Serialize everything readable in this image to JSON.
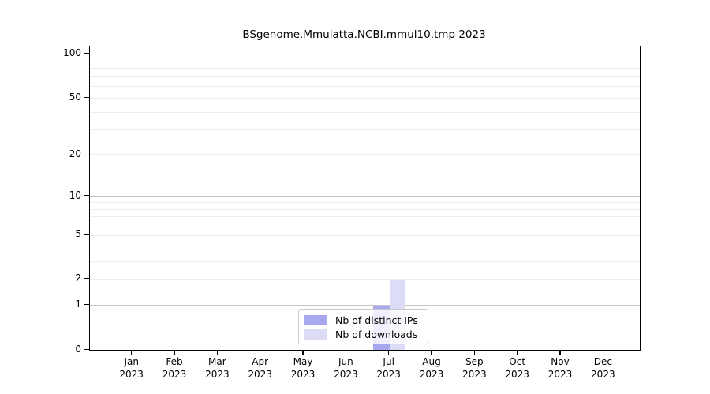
{
  "chart_data": {
    "type": "bar",
    "title": "BSgenome.Mmulatta.NCBI.mmul10.tmp 2023",
    "categories": [
      {
        "month": "Jan",
        "year": "2023"
      },
      {
        "month": "Feb",
        "year": "2023"
      },
      {
        "month": "Mar",
        "year": "2023"
      },
      {
        "month": "Apr",
        "year": "2023"
      },
      {
        "month": "May",
        "year": "2023"
      },
      {
        "month": "Jun",
        "year": "2023"
      },
      {
        "month": "Jul",
        "year": "2023"
      },
      {
        "month": "Aug",
        "year": "2023"
      },
      {
        "month": "Sep",
        "year": "2023"
      },
      {
        "month": "Oct",
        "year": "2023"
      },
      {
        "month": "Nov",
        "year": "2023"
      },
      {
        "month": "Dec",
        "year": "2023"
      }
    ],
    "series": [
      {
        "name": "Nb of distinct IPs",
        "color": "#a8a8ee",
        "values": [
          0,
          0,
          0,
          0,
          0,
          0,
          1,
          0,
          0,
          0,
          0,
          0
        ]
      },
      {
        "name": "Nb of downloads",
        "color": "#dcdcf6",
        "values": [
          0,
          0,
          0,
          0,
          0,
          0,
          2,
          0,
          0,
          0,
          0,
          0
        ]
      }
    ],
    "xlabel": "",
    "ylabel": "",
    "yscale": "log1p",
    "yticks": [
      0,
      1,
      2,
      5,
      10,
      20,
      50,
      100
    ],
    "ylim": [
      0,
      113
    ],
    "grid": {
      "major_values": [
        1,
        10,
        100
      ],
      "minor_values": [
        2,
        3,
        4,
        5,
        6,
        7,
        8,
        9,
        20,
        30,
        40,
        50,
        60,
        70,
        80,
        90
      ],
      "major_color": "#c6c6c6",
      "minor_color": "#ededed"
    },
    "legend_position": "bottom-center"
  }
}
